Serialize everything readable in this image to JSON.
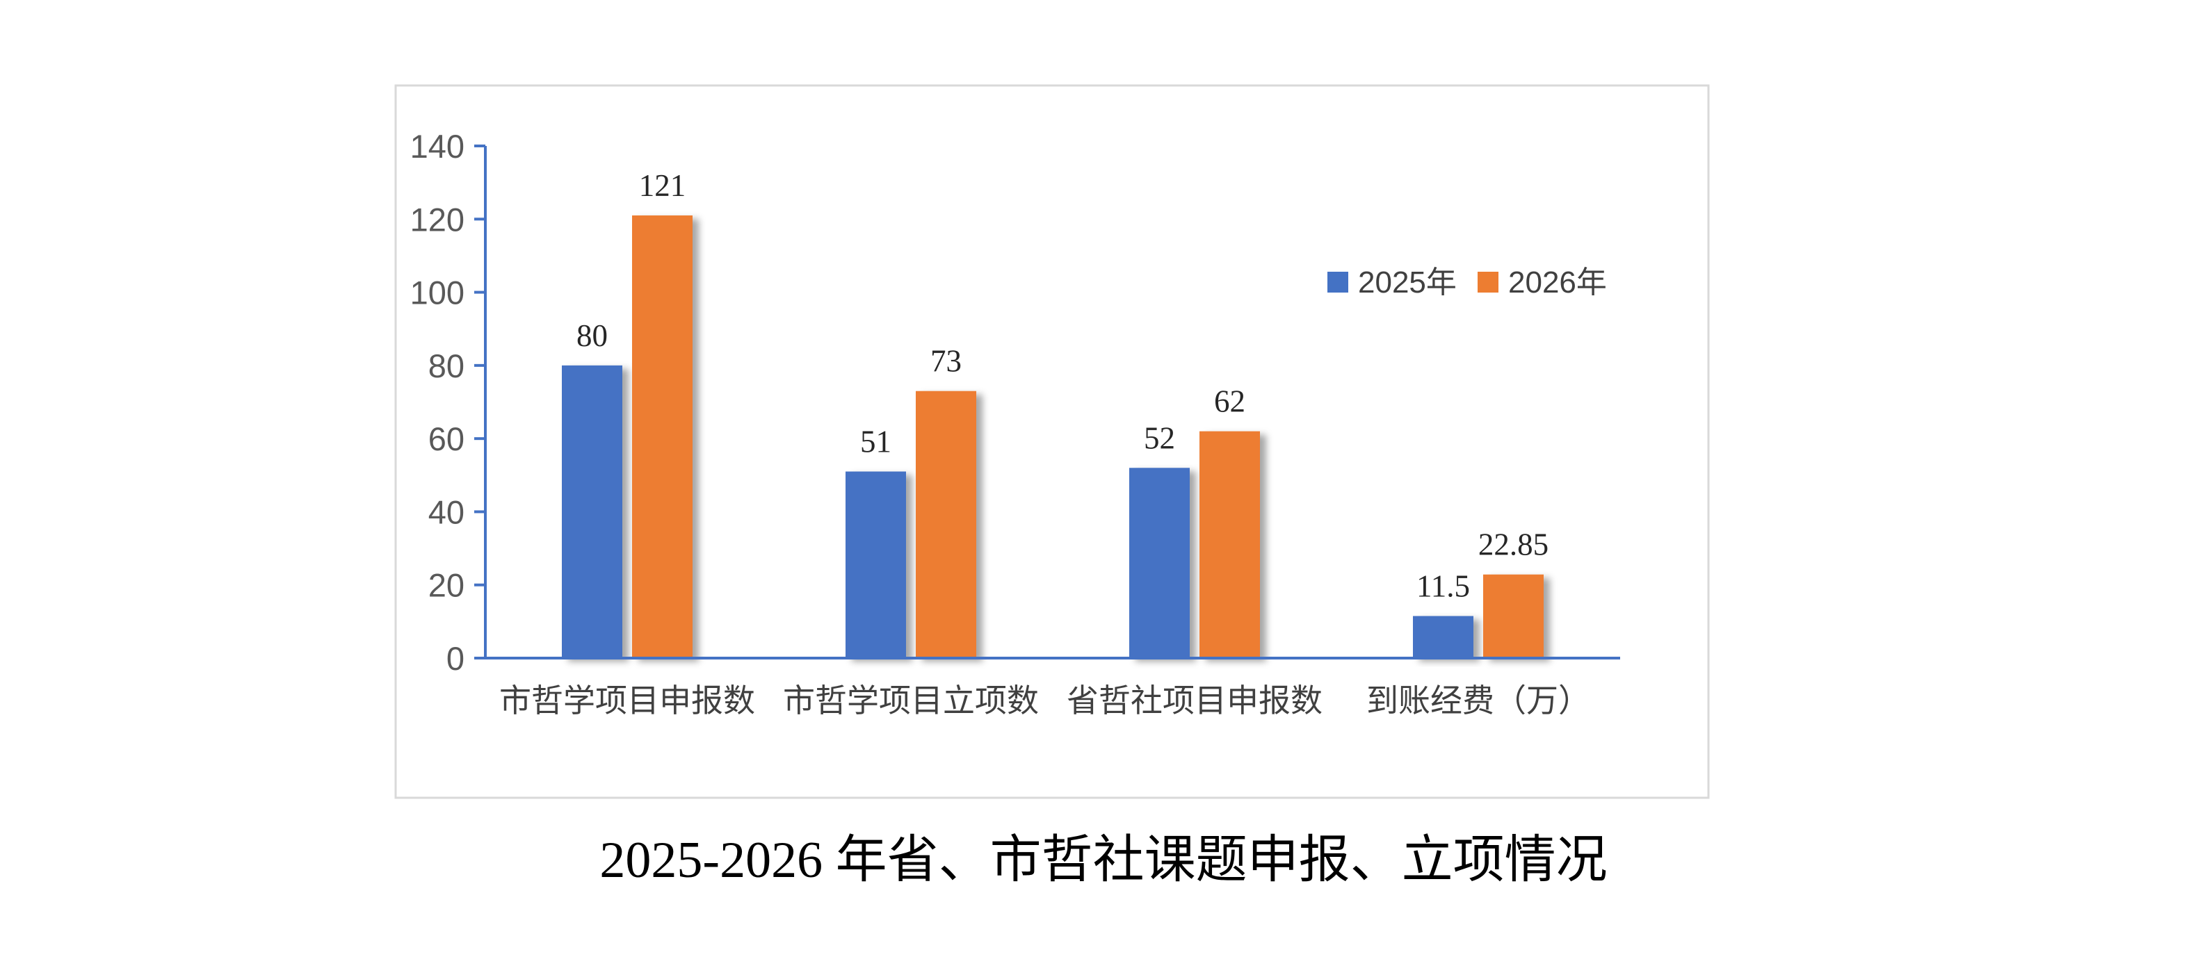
{
  "chart_data": {
    "type": "bar",
    "title": "2025-2026 年省、市哲社课题申报、立项情况",
    "xlabel": "",
    "ylabel": "",
    "categories": [
      "市哲学项目申报数",
      "市哲学项目立项数",
      "省哲社项目申报数",
      "到账经费（万）"
    ],
    "series": [
      {
        "name": "2025年",
        "values": [
          80,
          51,
          52,
          11.5
        ],
        "color": "#4472C4"
      },
      {
        "name": "2026年",
        "values": [
          121,
          73,
          62,
          22.85
        ],
        "color": "#ED7D31"
      }
    ],
    "ylim": [
      0,
      140
    ],
    "yticks": [
      0,
      20,
      40,
      60,
      80,
      100,
      120,
      140
    ],
    "grid": false,
    "data_labels": true,
    "legend_position": "top-right"
  },
  "colors": {
    "axis": "#4472C4",
    "frame": "#D9D9D9"
  }
}
